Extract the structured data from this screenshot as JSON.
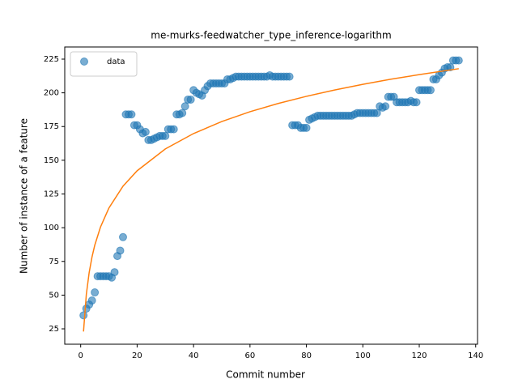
{
  "chart_data": {
    "type": "scatter",
    "title": "me-murks-feedwatcher_type_inference-logarithm",
    "x_label": "Commit number",
    "y_label": "Number of instance of a feature",
    "xlim": [
      -5.65,
      140.65
    ],
    "ylim": [
      13.6,
      234
    ],
    "xticks": [
      0,
      20,
      40,
      60,
      80,
      100,
      120,
      140
    ],
    "yticks": [
      25,
      50,
      75,
      100,
      125,
      150,
      175,
      200,
      225
    ],
    "legend": "upper left",
    "series": [
      {
        "name": "data",
        "type": "scatter",
        "color": "#1f77b4",
        "x": [
          1,
          2,
          3,
          4,
          5,
          6,
          7,
          8,
          9,
          10,
          11,
          12,
          13,
          14,
          15,
          16,
          17,
          18,
          19,
          20,
          21,
          22,
          23,
          24,
          25,
          26,
          27,
          28,
          29,
          30,
          31,
          32,
          33,
          34,
          35,
          36,
          37,
          38,
          39,
          40,
          41,
          42,
          43,
          44,
          45,
          46,
          47,
          48,
          49,
          50,
          51,
          52,
          53,
          54,
          55,
          56,
          57,
          58,
          59,
          60,
          61,
          62,
          63,
          64,
          65,
          66,
          67,
          68,
          69,
          70,
          71,
          72,
          73,
          74,
          75,
          76,
          77,
          78,
          79,
          80,
          81,
          82,
          83,
          84,
          85,
          86,
          87,
          88,
          89,
          90,
          91,
          92,
          93,
          94,
          95,
          96,
          97,
          98,
          99,
          100,
          101,
          102,
          103,
          104,
          105,
          106,
          107,
          108,
          109,
          110,
          111,
          112,
          113,
          114,
          115,
          116,
          117,
          118,
          119,
          120,
          121,
          122,
          123,
          124,
          125,
          126,
          127,
          128,
          129,
          130,
          131,
          132,
          133,
          134
        ],
        "values": [
          35,
          40,
          43,
          46,
          52,
          64,
          64,
          64,
          64,
          64,
          63,
          67,
          79,
          83,
          93,
          184,
          184,
          184,
          176,
          176,
          173,
          170,
          171,
          165,
          165,
          166,
          167,
          168,
          168,
          168,
          173,
          173,
          173,
          184,
          184,
          185,
          190,
          195,
          195,
          202,
          200,
          199,
          198,
          202,
          205,
          207,
          207,
          207,
          207,
          207,
          207,
          210,
          210,
          211,
          212,
          212,
          212,
          212,
          212,
          212,
          212,
          212,
          212,
          212,
          212,
          212,
          213,
          212,
          212,
          212,
          212,
          212,
          212,
          212,
          176,
          176,
          176,
          174,
          174,
          174,
          180,
          181,
          182,
          183,
          183,
          183,
          183,
          183,
          183,
          183,
          183,
          183,
          183,
          183,
          183,
          183,
          184,
          185,
          185,
          185,
          185,
          185,
          185,
          185,
          185,
          190,
          189,
          190,
          197,
          197,
          197,
          193,
          193,
          193,
          193,
          193,
          194,
          193,
          193,
          202,
          202,
          202,
          202,
          202,
          210,
          210,
          213,
          215,
          218,
          219,
          219,
          224,
          224,
          224
        ]
      },
      {
        "type": "line",
        "color": "#ff7f0e",
        "x": [
          1,
          2,
          3,
          4,
          5,
          7,
          10,
          15,
          20,
          30,
          40,
          50,
          60,
          70,
          80,
          90,
          100,
          110,
          120,
          134
        ],
        "values": [
          23,
          50.6,
          66.7,
          78.2,
          87.1,
          100.4,
          114.6,
          130.8,
          142.2,
          158.4,
          169.8,
          178.7,
          186.0,
          192.1,
          197.4,
          202.1,
          206.3,
          210.1,
          213.5,
          217.9
        ]
      }
    ]
  }
}
